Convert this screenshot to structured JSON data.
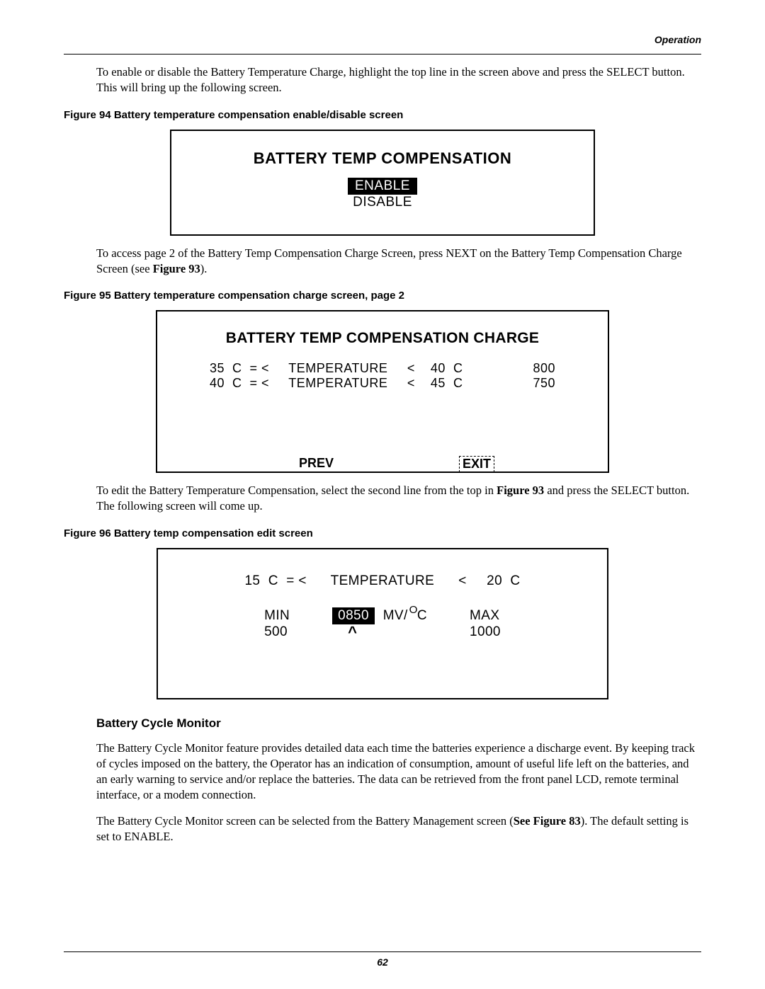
{
  "header": {
    "section": "Operation"
  },
  "para1": "To enable or disable the Battery Temperature Charge, highlight the top line in the screen above and press the SELECT button. This will bring up the following screen.",
  "fig94": {
    "caption": "Figure 94  Battery temperature compensation enable/disable screen",
    "title": "BATTERY TEMP COMPENSATION",
    "enable": "ENABLE",
    "disable": "DISABLE"
  },
  "para2a": "To access page 2 of the Battery Temp Compensation Charge Screen, press NEXT on the Battery Temp Compensation Charge Screen (see ",
  "para2ref": "Figure 93",
  "para2b": ").",
  "fig95": {
    "caption": "Figure 95  Battery temperature compensation charge screen, page 2",
    "title": "BATTERY TEMP COMPENSATION CHARGE",
    "row1": "35  C  = <     TEMPERATURE     <    40  C                  800",
    "row2": "40  C  = <     TEMPERATURE     <    45  C                  750",
    "prev": "PREV",
    "exit": "EXIT"
  },
  "para3a": "To edit the Battery Temperature Compensation, select the second line from the top in ",
  "para3ref": "Figure 93",
  "para3b": " and press the SELECT button. The following screen will come up.",
  "fig96": {
    "caption": "Figure 96  Battery temp compensation edit screen",
    "line1": "15  C  = <      TEMPERATURE      <     20  C",
    "min_label": "MIN",
    "min_val": "500",
    "value": "0850",
    "unit_prefix": "MV/",
    "unit_deg": "O",
    "unit_c": "C",
    "max_label": "MAX",
    "max_val": "1000",
    "caret": "^"
  },
  "subhead": "Battery Cycle Monitor",
  "para4": "The Battery Cycle Monitor feature provides detailed data each time the batteries experience a discharge event. By keeping track of cycles imposed on the battery, the Operator has an indication of consumption, amount of useful life left on the batteries, and an early warning to service and/or replace the batteries. The data can be retrieved from the front panel LCD, remote terminal interface, or a modem connection.",
  "para5a": "The Battery Cycle Monitor screen can be selected from the Battery Management screen (",
  "para5ref": "See Figure 83",
  "para5b": "). The default setting is set to ENABLE.",
  "page": "62"
}
